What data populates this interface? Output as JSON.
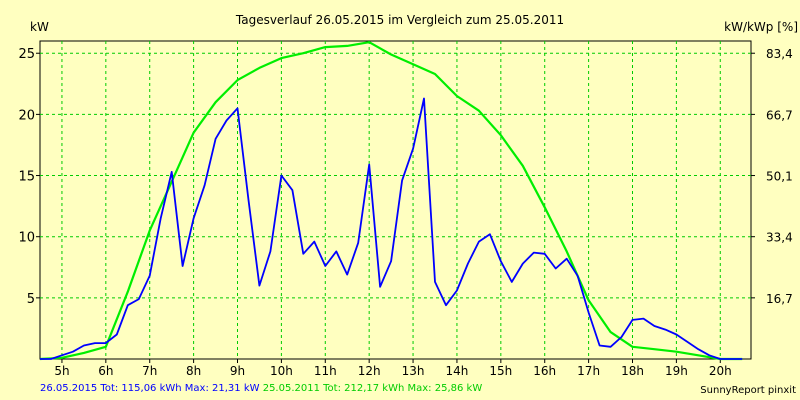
{
  "chart_data": {
    "type": "line",
    "title": "Tagesverlauf 26.05.2015 im Vergleich zum 25.05.2011",
    "ylabel_left": "kW",
    "ylabel_right": "kW/kWp [%]",
    "xlim": [
      4.5,
      20.7
    ],
    "ylim": [
      0,
      26
    ],
    "x_ticks": [
      5,
      6,
      7,
      8,
      9,
      10,
      11,
      12,
      13,
      14,
      15,
      16,
      17,
      18,
      19,
      20
    ],
    "x_tick_labels": [
      "5h",
      "6h",
      "7h",
      "8h",
      "9h",
      "10h",
      "11h",
      "12h",
      "13h",
      "14h",
      "15h",
      "16h",
      "17h",
      "18h",
      "19h",
      "20h"
    ],
    "y_left_ticks": [
      5,
      10,
      15,
      20,
      25
    ],
    "y_left_tick_labels": [
      "5",
      "10",
      "15",
      "20",
      "25"
    ],
    "y_right_ticks": [
      5,
      10,
      15,
      20,
      25
    ],
    "y_right_tick_labels": [
      "16,7",
      "33,4",
      "50,1",
      "66,7",
      "83,4"
    ],
    "grid": true,
    "colors": {
      "background": "#ffffc0",
      "grid": "#00cc00",
      "series_2015": "#0000ff",
      "series_2011": "#00ee00"
    },
    "series": [
      {
        "name": "26.05.2015",
        "color": "#0000ff",
        "x": [
          4.5,
          4.75,
          5.0,
          5.25,
          5.5,
          5.75,
          6.0,
          6.25,
          6.5,
          6.75,
          7.0,
          7.25,
          7.5,
          7.75,
          8.0,
          8.25,
          8.5,
          8.75,
          9.0,
          9.25,
          9.5,
          9.75,
          10.0,
          10.25,
          10.5,
          10.75,
          11.0,
          11.25,
          11.5,
          11.75,
          12.0,
          12.25,
          12.5,
          12.75,
          13.0,
          13.25,
          13.5,
          13.75,
          14.0,
          14.25,
          14.5,
          14.75,
          15.0,
          15.25,
          15.5,
          15.75,
          16.0,
          16.25,
          16.5,
          16.75,
          17.0,
          17.25,
          17.5,
          17.75,
          18.0,
          18.25,
          18.5,
          18.75,
          19.0,
          19.25,
          19.5,
          19.75,
          20.0,
          20.25,
          20.5
        ],
        "values": [
          0,
          0,
          0.3,
          0.6,
          1.1,
          1.3,
          1.3,
          2.0,
          4.4,
          4.9,
          6.8,
          11.5,
          15.3,
          7.6,
          11.5,
          14.2,
          18.0,
          19.5,
          20.5,
          13.0,
          6.0,
          8.8,
          15.0,
          13.8,
          8.6,
          9.6,
          7.6,
          8.8,
          6.9,
          9.5,
          15.9,
          5.9,
          8.0,
          14.6,
          17.2,
          21.3,
          6.3,
          4.4,
          5.6,
          7.8,
          9.6,
          10.2,
          8.0,
          6.3,
          7.8,
          8.7,
          8.6,
          7.4,
          8.2,
          6.8,
          3.8,
          1.1,
          1.0,
          1.8,
          3.2,
          3.3,
          2.7,
          2.4,
          2.0,
          1.4,
          0.8,
          0.3,
          0,
          0,
          0
        ]
      },
      {
        "name": "25.05.2011",
        "color": "#00ee00",
        "x": [
          4.5,
          5.0,
          5.5,
          6.0,
          6.5,
          7.0,
          7.5,
          8.0,
          8.5,
          9.0,
          9.5,
          10.0,
          10.5,
          11.0,
          11.5,
          12.0,
          12.5,
          13.0,
          13.5,
          14.0,
          14.5,
          15.0,
          15.5,
          16.0,
          16.5,
          17.0,
          17.5,
          18.0,
          18.5,
          19.0,
          19.5,
          20.0,
          20.5
        ],
        "values": [
          0,
          0.1,
          0.5,
          1.0,
          5.5,
          10.5,
          14.5,
          18.5,
          21.0,
          22.8,
          23.8,
          24.6,
          25.0,
          25.5,
          25.6,
          25.9,
          24.9,
          24.1,
          23.3,
          21.5,
          20.3,
          18.3,
          15.8,
          12.4,
          8.8,
          4.8,
          2.2,
          1.0,
          0.8,
          0.6,
          0.3,
          0,
          0
        ]
      }
    ],
    "legend_text": {
      "series_2015": "26.05.2015 Tot: 115,06 kWh Max: 21,31 kW",
      "series_2011": "25.05.2011 Tot: 212,17 kWh Max: 25,86 kW"
    },
    "footer_right": "SunnyReport pinxit"
  }
}
